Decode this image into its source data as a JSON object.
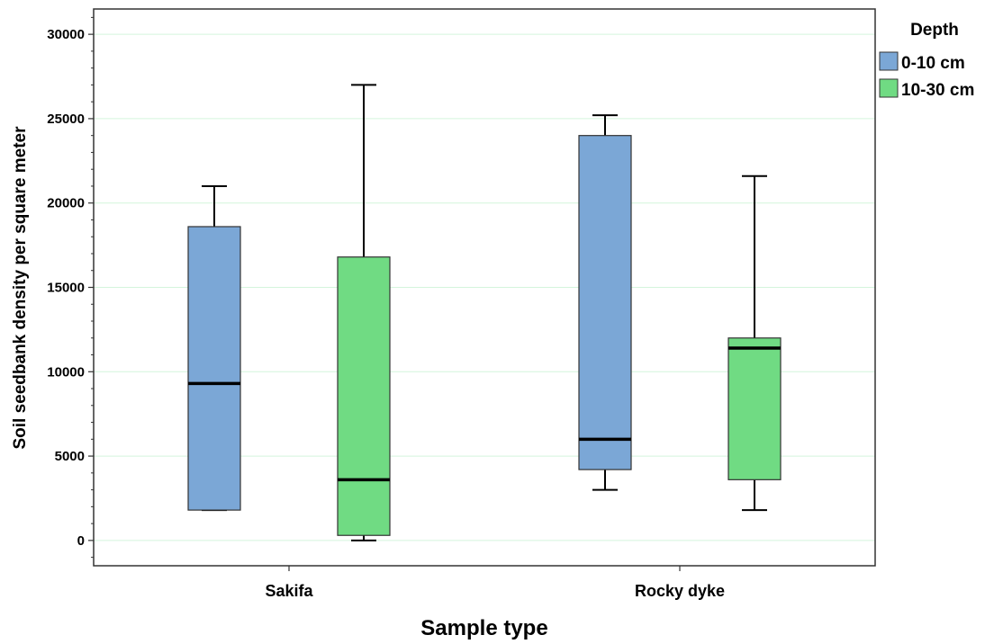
{
  "chart_data": {
    "type": "boxplot",
    "title": "",
    "xlabel": "Sample type",
    "ylabel": "Soil seedbank density per square meter",
    "categories": [
      "Sakifa",
      "Rocky dyke"
    ],
    "ylim": [
      -1500,
      31500
    ],
    "yticks": [
      0,
      5000,
      10000,
      15000,
      20000,
      25000,
      30000
    ],
    "grid": true,
    "legend": {
      "title": "Depth",
      "position": "right"
    },
    "series": [
      {
        "name": "0-10 cm",
        "color": "#7ba7d6",
        "boxes": [
          {
            "category": "Sakifa",
            "min": 1800,
            "q1": 1800,
            "median": 9300,
            "q3": 18600,
            "max": 21000
          },
          {
            "category": "Rocky dyke",
            "min": 3000,
            "q1": 4200,
            "median": 6000,
            "q3": 24000,
            "max": 25200
          }
        ]
      },
      {
        "name": "10-30 cm",
        "color": "#70db83",
        "boxes": [
          {
            "category": "Sakifa",
            "min": 0,
            "q1": 300,
            "median": 3600,
            "q3": 16800,
            "max": 27000
          },
          {
            "category": "Rocky dyke",
            "min": 1800,
            "q1": 3600,
            "median": 11400,
            "q3": 12000,
            "max": 21600
          }
        ]
      }
    ]
  }
}
